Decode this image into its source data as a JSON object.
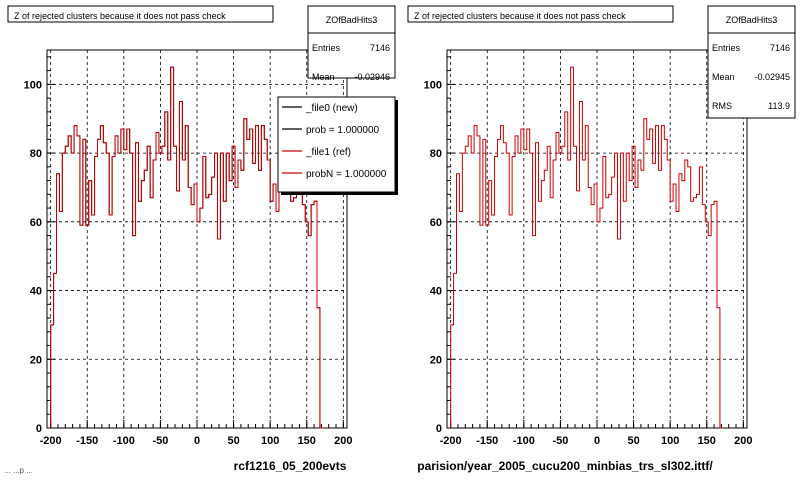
{
  "footer_text": "... ...p ...",
  "chart_data": [
    {
      "type": "line",
      "title": "Z of rejected clusters  because it does not pass check",
      "xlabel": "rcf1216_05_200evts",
      "xlim": [
        -205,
        205
      ],
      "ylim": [
        0,
        110
      ],
      "xticks": [
        "-200",
        "-150",
        "-100",
        "-50",
        "0",
        "50",
        "100",
        "150",
        "200"
      ],
      "yticks": [
        "0",
        "20",
        "40",
        "60",
        "80",
        "100"
      ],
      "grid": true,
      "stats": {
        "name": "ZOfBadHits3",
        "rows": [
          {
            "label": "Entries",
            "value": "7146"
          },
          {
            "label": "Mean",
            "value": "-0.02946"
          }
        ]
      },
      "legend": [
        {
          "label": "_file0 (new)",
          "color": "#000000"
        },
        {
          "label": "prob = 1.000000",
          "color": "#000000"
        },
        {
          "label": "_file1 (ref)",
          "color": "#cc0000"
        },
        {
          "label": "probN = 1.000000",
          "color": "#cc0000"
        }
      ],
      "series": [
        {
          "name": "_file0 (new)",
          "color": "#000000",
          "step": 4,
          "x_start": -200,
          "values": [
            30,
            45,
            74,
            63,
            80,
            82,
            85,
            80,
            88,
            85,
            59,
            84,
            59,
            72,
            62,
            79,
            84,
            88,
            83,
            80,
            62,
            79,
            85,
            80,
            87,
            81,
            87,
            80,
            56,
            83,
            66,
            72,
            75,
            82,
            67,
            78,
            86,
            80,
            82,
            92,
            78,
            105,
            82,
            69,
            95,
            78,
            88,
            70,
            65,
            71,
            60,
            64,
            79,
            67,
            68,
            73,
            80,
            55,
            80,
            66,
            80,
            72,
            82,
            70,
            78,
            75,
            90,
            84,
            87,
            77,
            88,
            75,
            88,
            84,
            78,
            66,
            71,
            63,
            74,
            72,
            78,
            76,
            66,
            67,
            68,
            76,
            65,
            60,
            56,
            65,
            66,
            35,
            0
          ]
        },
        {
          "name": "_file1 (ref)",
          "color": "#cc0000",
          "step": 4,
          "x_start": -200,
          "values": [
            30,
            45,
            74,
            63,
            80,
            82,
            85,
            80,
            88,
            85,
            59,
            84,
            59,
            72,
            62,
            79,
            84,
            88,
            83,
            80,
            62,
            79,
            85,
            80,
            87,
            81,
            87,
            80,
            56,
            83,
            66,
            72,
            75,
            82,
            67,
            78,
            86,
            80,
            82,
            92,
            78,
            105,
            82,
            69,
            95,
            78,
            88,
            70,
            65,
            71,
            60,
            64,
            79,
            67,
            68,
            73,
            80,
            55,
            80,
            66,
            80,
            72,
            82,
            70,
            78,
            75,
            90,
            84,
            87,
            77,
            88,
            75,
            88,
            84,
            78,
            66,
            71,
            63,
            74,
            72,
            78,
            76,
            66,
            67,
            68,
            76,
            65,
            60,
            56,
            65,
            66,
            35,
            0
          ]
        }
      ]
    },
    {
      "type": "line",
      "title": "Z of rejected clusters  because it does not pass check",
      "xlabel": "parision/year_2005_cucu200_minbias_trs_sl302.ittf/",
      "xlim": [
        -205,
        205
      ],
      "ylim": [
        0,
        110
      ],
      "xticks": [
        "-200",
        "-150",
        "-100",
        "-50",
        "0",
        "50",
        "100",
        "150",
        "200"
      ],
      "yticks": [
        "0",
        "20",
        "40",
        "60",
        "80",
        "100"
      ],
      "grid": true,
      "stats": {
        "name": "ZOfBadHits3",
        "rows": [
          {
            "label": "Entries",
            "value": "7146"
          },
          {
            "label": "Mean",
            "value": "-0.02945"
          },
          {
            "label": "RMS",
            "value": "113.9"
          }
        ]
      },
      "legend": [],
      "series": [
        {
          "name": "_file1 (ref)",
          "color": "#cc0000",
          "step": 4,
          "x_start": -200,
          "values": [
            30,
            45,
            74,
            63,
            80,
            82,
            85,
            80,
            88,
            85,
            59,
            84,
            59,
            72,
            62,
            79,
            84,
            88,
            83,
            80,
            62,
            79,
            85,
            80,
            87,
            81,
            87,
            80,
            56,
            83,
            66,
            72,
            75,
            82,
            67,
            78,
            86,
            80,
            82,
            92,
            78,
            105,
            82,
            69,
            95,
            78,
            88,
            70,
            65,
            71,
            60,
            64,
            79,
            67,
            68,
            73,
            80,
            55,
            80,
            66,
            80,
            72,
            82,
            70,
            78,
            75,
            90,
            84,
            87,
            77,
            88,
            75,
            88,
            84,
            78,
            66,
            71,
            63,
            74,
            72,
            78,
            76,
            66,
            67,
            68,
            76,
            65,
            60,
            56,
            65,
            66,
            35,
            0
          ]
        }
      ]
    }
  ]
}
